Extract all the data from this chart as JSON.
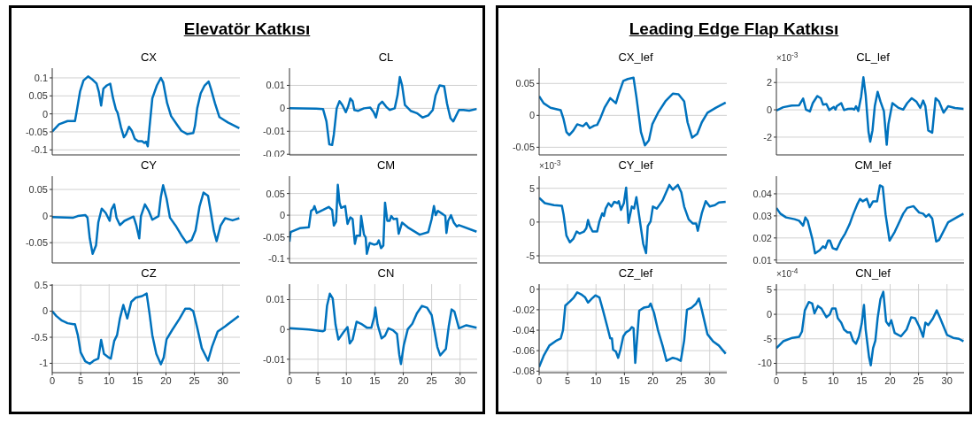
{
  "chart_data": [
    {
      "type": "line",
      "title": "CX",
      "annotations": [
        "Elevatör Katkısı"
      ],
      "x": [
        0,
        1.2,
        2.7,
        4,
        4.4,
        4.9,
        5.5,
        6.3,
        7.1,
        7.8,
        8.2,
        8.6,
        9,
        9.6,
        10.2,
        10.7,
        11.2,
        11.5,
        12.1,
        12.6,
        13,
        13.5,
        14,
        14.5,
        15.1,
        15.8,
        16.2,
        16.5,
        16.8,
        17.1,
        17.6,
        18.4,
        19.1,
        19.5,
        20.2,
        20.9,
        21.9,
        22.7,
        23.7,
        24.8,
        25.1,
        25.5,
        26.1,
        26.8,
        27.5,
        27.9,
        28.6,
        29.4,
        30.9,
        32.9
      ],
      "series": [
        {
          "color": "#0072bd",
          "values": [
            -0.049,
            -0.029,
            -0.02,
            -0.02,
            0.016,
            0.063,
            0.093,
            0.104,
            0.095,
            0.084,
            0.061,
            0.023,
            0.07,
            0.079,
            0.084,
            0.043,
            0.012,
            0.003,
            -0.038,
            -0.065,
            -0.056,
            -0.036,
            -0.047,
            -0.069,
            -0.076,
            -0.076,
            -0.081,
            -0.077,
            -0.09,
            -0.038,
            0.043,
            0.079,
            0.1,
            0.088,
            0.03,
            -0.006,
            -0.029,
            -0.047,
            -0.056,
            -0.053,
            -0.033,
            0.016,
            0.057,
            0.079,
            0.09,
            0.07,
            0.03,
            -0.009,
            -0.024,
            -0.04
          ]
        }
      ],
      "xlim": [
        0,
        33
      ],
      "xticks": [
        0,
        5,
        10,
        15,
        20,
        25,
        30
      ],
      "ylim": [
        -0.114,
        0.127
      ],
      "yticks": [
        -0.1,
        -0.05,
        0,
        0.05,
        0.1
      ],
      "grid": true,
      "tick_labels": "y"
    },
    {
      "type": "line",
      "title": "CL",
      "x": [
        0,
        4.7,
        5.9,
        6.5,
        7,
        7.5,
        7.8,
        8.3,
        8.8,
        9.3,
        9.9,
        10.3,
        10.7,
        11.1,
        11.4,
        12.1,
        13.1,
        14.2,
        14.8,
        15.2,
        15.7,
        16.3,
        17,
        17.6,
        18.5,
        19,
        19.4,
        19.8,
        20.3,
        21.3,
        22.4,
        23.4,
        24.4,
        25.2,
        25.7,
        26.4,
        27.2,
        27.7,
        28.3,
        28.8,
        29.8,
        30.6,
        31.6,
        32.9
      ],
      "series": [
        {
          "color": "#0072bd",
          "values": [
            0,
            -0.0001,
            -0.0003,
            -0.0057,
            -0.0157,
            -0.016,
            -0.0114,
            0,
            0.0031,
            0.0014,
            -0.0017,
            0.0007,
            0.0043,
            0.0031,
            -0.0007,
            -0.0011,
            0,
            0.0003,
            -0.0017,
            -0.004,
            0.0014,
            0.0029,
            0.0007,
            -0.0007,
            0,
            0.0057,
            0.0136,
            0.01,
            0.0014,
            -0.0011,
            -0.0021,
            -0.004,
            -0.0031,
            -0.0007,
            0.0057,
            0.01,
            0.0096,
            0.0021,
            -0.0043,
            -0.0057,
            -0.0007,
            -0.0007,
            -0.001,
            -0.0003
          ]
        }
      ],
      "xlim": [
        0,
        33
      ],
      "xticks": [
        0,
        5,
        10,
        15,
        20,
        25,
        30
      ],
      "ylim": [
        -0.0203,
        0.0175
      ],
      "yticks": [
        -0.02,
        -0.01,
        0,
        0.01
      ],
      "grid": true,
      "tick_labels": "y"
    },
    {
      "type": "line",
      "title": "CY",
      "x": [
        0,
        3.7,
        4.5,
        5.8,
        6.2,
        6.6,
        7.1,
        7.7,
        8.1,
        8.7,
        9.4,
        10.1,
        10.4,
        10.9,
        11.3,
        11.9,
        12.7,
        14.3,
        14.8,
        15.3,
        15.6,
        16.3,
        17,
        17.6,
        18.7,
        19.1,
        19.5,
        20.1,
        20.7,
        21.7,
        22.7,
        23.6,
        24.5,
        25.2,
        25.9,
        26.6,
        27.4,
        27.9,
        28.4,
        28.9,
        29.6,
        30.4,
        31.7,
        32.9
      ],
      "series": [
        {
          "color": "#0072bd",
          "values": [
            -0.002,
            -0.003,
            0,
            0.002,
            -0.003,
            -0.042,
            -0.071,
            -0.055,
            -0.012,
            0.014,
            0.006,
            -0.009,
            0.012,
            0.022,
            -0.003,
            -0.017,
            -0.009,
            -0.001,
            -0.018,
            -0.042,
            0,
            0.022,
            0.009,
            -0.007,
            0,
            0.036,
            0.058,
            0.033,
            -0.003,
            -0.018,
            -0.036,
            -0.05,
            -0.045,
            -0.027,
            0.018,
            0.044,
            0.038,
            0.006,
            -0.027,
            -0.047,
            -0.018,
            -0.004,
            -0.008,
            -0.004
          ]
        }
      ],
      "xlim": [
        0,
        33
      ],
      "xticks": [
        0,
        5,
        10,
        15,
        20,
        25,
        30
      ],
      "ylim": [
        -0.088,
        0.075
      ],
      "yticks": [
        -0.05,
        0,
        0.05
      ],
      "grid": true,
      "tick_labels": "y"
    },
    {
      "type": "line",
      "title": "CM",
      "x": [
        0,
        0.2,
        1.8,
        3.4,
        3.8,
        4.2,
        4.4,
        4.8,
        5.9,
        6.9,
        7.5,
        7.8,
        8.2,
        8.5,
        8.8,
        9.1,
        9.8,
        10.2,
        10.7,
        11.1,
        11.5,
        11.8,
        12.4,
        12.6,
        13.1,
        13.4,
        13.6,
        14.1,
        14.9,
        15.4,
        15.7,
        16.1,
        16.5,
        16.8,
        17.2,
        17.6,
        17.9,
        18.3,
        18.9,
        19.2,
        19.8,
        20.8,
        22.9,
        24.4,
        25,
        25.4,
        25.7,
        26.1,
        27,
        27.4,
        27.6,
        27.9,
        28.4,
        28.9,
        29.4,
        29.8,
        32.9
      ],
      "series": [
        {
          "color": "#0072bd",
          "values": [
            -0.061,
            -0.039,
            -0.03,
            -0.028,
            0.01,
            0.014,
            0.021,
            0.005,
            0.012,
            0.019,
            0.012,
            -0.024,
            -0.015,
            0.07,
            0.029,
            0.017,
            0.021,
            -0.02,
            -0.005,
            -0.009,
            -0.066,
            -0.047,
            -0.047,
            -0.002,
            -0.045,
            -0.051,
            -0.089,
            -0.064,
            -0.068,
            -0.066,
            -0.058,
            -0.076,
            -0.07,
            0.029,
            -0.013,
            -0.013,
            -0.002,
            -0.009,
            -0.008,
            -0.043,
            -0.017,
            -0.028,
            -0.045,
            -0.039,
            -0.009,
            0.021,
            0,
            0.01,
            0.002,
            -0.002,
            -0.041,
            -0.013,
            0,
            -0.017,
            -0.026,
            -0.023,
            -0.038
          ]
        }
      ],
      "xlim": [
        0,
        33
      ],
      "xticks": [
        0,
        5,
        10,
        15,
        20,
        25,
        30
      ],
      "ylim": [
        -0.11,
        0.09
      ],
      "yticks": [
        -0.1,
        -0.05,
        0,
        0.05
      ],
      "grid": true,
      "tick_labels": "y"
    },
    {
      "type": "line",
      "title": "CZ",
      "x": [
        0,
        0.7,
        1.7,
        2.7,
        3.7,
        4,
        4.5,
        5,
        5.8,
        6.6,
        7.3,
        8.1,
        8.6,
        9.1,
        9.8,
        10.3,
        10.9,
        11.4,
        11.9,
        12.5,
        13.2,
        13.9,
        14.7,
        15.8,
        16.6,
        17.1,
        17.6,
        18.3,
        19.1,
        19.6,
        20.1,
        21.1,
        22.4,
        23.4,
        24.2,
        24.8,
        25.5,
        26.3,
        27.4,
        28.1,
        29.1,
        30.4,
        32.8
      ],
      "series": [
        {
          "color": "#0072bd",
          "values": [
            0,
            -0.09,
            -0.18,
            -0.23,
            -0.25,
            -0.25,
            -0.46,
            -0.79,
            -0.96,
            -1.01,
            -0.95,
            -0.91,
            -0.55,
            -0.82,
            -0.88,
            -0.91,
            -0.57,
            -0.46,
            -0.14,
            0.12,
            -0.14,
            0.18,
            0.26,
            0.29,
            0.34,
            -0.04,
            -0.46,
            -0.82,
            -1.02,
            -0.89,
            -0.54,
            -0.36,
            -0.14,
            0.05,
            0.05,
            0,
            -0.32,
            -0.71,
            -0.95,
            -0.68,
            -0.39,
            -0.29,
            -0.09
          ]
        }
      ],
      "xlim": [
        0,
        33
      ],
      "xticks": [
        0,
        5,
        10,
        15,
        20,
        25,
        30
      ],
      "ylim": [
        -1.18,
        0.52
      ],
      "yticks": [
        -1,
        -0.5,
        0,
        0.5
      ],
      "grid": true
    },
    {
      "type": "line",
      "title": "CN",
      "x": [
        0,
        3.4,
        5.9,
        6.2,
        6.6,
        7.1,
        7.6,
        8.1,
        8.6,
        9.5,
        10.2,
        10.6,
        11.1,
        11.8,
        12.6,
        13.6,
        14.4,
        14.9,
        15.1,
        15.5,
        16.2,
        16.8,
        17.4,
        18.2,
        18.9,
        19.3,
        19.6,
        20.1,
        20.8,
        21.6,
        22.4,
        23.3,
        24.2,
        25,
        26,
        26.5,
        27.5,
        28,
        28.5,
        29,
        29.8,
        31.1,
        32.9
      ],
      "series": [
        {
          "color": "#0072bd",
          "values": [
            0.0004,
            0,
            -0.0006,
            -0.0003,
            0.0079,
            0.012,
            0.0104,
            0.0016,
            -0.0034,
            -0.0009,
            0.0008,
            -0.0047,
            -0.0034,
            0.0026,
            0.0019,
            0.0006,
            0.0006,
            0.0042,
            0.0073,
            0.0016,
            -0.003,
            -0.0021,
            0.0004,
            -0.0003,
            -0.0015,
            -0.0084,
            -0.0116,
            -0.0053,
            0.0001,
            0.0019,
            0.0054,
            0.0079,
            0.0073,
            0.0048,
            -0.0059,
            -0.0087,
            -0.0065,
            0.001,
            0.0067,
            0.006,
            0.0004,
            0.0014,
            0.0006
          ]
        }
      ],
      "xlim": [
        0,
        33
      ],
      "xticks": [
        0,
        5,
        10,
        15,
        20,
        25,
        30
      ],
      "ylim": [
        -0.0145,
        0.0152
      ],
      "yticks": [
        -0.01,
        0,
        0.01
      ],
      "grid": true
    },
    {
      "type": "line",
      "title": "CX_lef",
      "annotations": [
        "Leading Edge Flap Katkısı"
      ],
      "x": [
        0,
        0.8,
        2,
        3.8,
        4.3,
        4.8,
        5.3,
        6,
        6.7,
        7.7,
        8.3,
        8.9,
        9.7,
        10.2,
        10.7,
        11.5,
        12.5,
        13.5,
        14,
        14.8,
        15.6,
        16.6,
        17.1,
        17.9,
        18.6,
        19.3,
        19.9,
        20.9,
        22.2,
        23.5,
        24.5,
        25.5,
        26.1,
        26.9,
        27.8,
        28.6,
        29.6,
        31.1,
        32.8
      ],
      "series": [
        {
          "color": "#0072bd",
          "values": [
            0.03,
            0.019,
            0.012,
            0.008,
            -0.006,
            -0.026,
            -0.031,
            -0.024,
            -0.014,
            -0.017,
            -0.012,
            -0.02,
            -0.016,
            -0.015,
            -0.006,
            0.012,
            0.027,
            0.019,
            0.034,
            0.054,
            0.057,
            0.059,
            0.029,
            -0.026,
            -0.047,
            -0.039,
            -0.014,
            0.004,
            0.022,
            0.034,
            0.033,
            0.022,
            -0.011,
            -0.035,
            -0.029,
            -0.011,
            0.004,
            0.012,
            0.02
          ]
        }
      ],
      "xlim": [
        0,
        33
      ],
      "xticks": [
        0,
        5,
        10,
        15,
        20,
        25,
        30
      ],
      "ylim": [
        -0.062,
        0.074
      ],
      "yticks": [
        -0.05,
        0,
        0.05
      ],
      "grid": true,
      "tick_labels": "y"
    },
    {
      "type": "line",
      "title": "CL_lef",
      "annotations": [
        "×10$^{-3}$"
      ],
      "x": [
        0,
        1.2,
        2.7,
        4,
        4.7,
        5.2,
        5.9,
        6.4,
        7.2,
        7.8,
        8.2,
        8.8,
        9.3,
        10.1,
        10.4,
        10.6,
        11.4,
        11.9,
        12.6,
        13.3,
        13.7,
        14,
        14.4,
        14.9,
        15.3,
        15.7,
        16.2,
        16.5,
        16.9,
        17.3,
        17.8,
        18.3,
        18.9,
        19.4,
        19.7,
        20.4,
        21.5,
        22.3,
        23,
        23.8,
        24.6,
        25.3,
        25.8,
        26.2,
        26.7,
        27.4,
        28,
        28.6,
        29.4,
        30.2,
        31.4,
        32.9
      ],
      "series": [
        {
          "color": "#0072bd",
          "values": [
            -0.05,
            0.19,
            0.31,
            0.33,
            0.82,
            0.02,
            -0.12,
            0.49,
            1.01,
            0.85,
            0.38,
            0.42,
            -0.02,
            0.21,
            0.02,
            0.26,
            0.49,
            -0.02,
            0.07,
            0.09,
            0.02,
            0.26,
            -0.09,
            0.96,
            2.38,
            1.08,
            -1.62,
            -2.33,
            -1.51,
            0.26,
            1.32,
            0.61,
            -0.09,
            -2.56,
            -1.04,
            0.49,
            0.14,
            0.02,
            0.49,
            0.85,
            0.61,
            0.14,
            0.68,
            0.26,
            -1.51,
            -1.67,
            0.85,
            0.61,
            -0.21,
            0.26,
            0.14,
            0.07
          ]
        }
      ],
      "xlim": [
        0,
        33
      ],
      "xticks": [
        0,
        5,
        10,
        15,
        20,
        25,
        30
      ],
      "ylim": [
        -3.3,
        3.05
      ],
      "yticks": [
        -2,
        0,
        2
      ],
      "grid": true,
      "tick_labels": "y"
    },
    {
      "type": "line",
      "title": "CY_lef",
      "annotations": [
        "×10$^{-3}$"
      ],
      "x": [
        0,
        1,
        2.6,
        4,
        4.3,
        4.8,
        5.4,
        6,
        6.6,
        7.1,
        7.9,
        8.3,
        8.6,
        8.9,
        9.4,
        10.2,
        10.6,
        11.1,
        11.4,
        11.7,
        12.2,
        12.7,
        13.2,
        13.8,
        14,
        14.4,
        14.9,
        15.3,
        15.7,
        16.3,
        16.7,
        17.1,
        17.4,
        18.3,
        18.8,
        19.1,
        19.6,
        20,
        20.7,
        21.7,
        22.9,
        23.5,
        24.4,
        25,
        25.5,
        26.3,
        27,
        27.6,
        27.9,
        28.6,
        29.3,
        30,
        30.9,
        31.6,
        32.8
      ],
      "series": [
        {
          "color": "#0072bd",
          "values": [
            3.6,
            2.8,
            2.5,
            2.4,
            1.1,
            -2,
            -3,
            -2.5,
            -1.4,
            -1.7,
            -1.4,
            -0.9,
            0.3,
            -0.6,
            -1.4,
            -1.4,
            0.1,
            1.3,
            0.9,
            2,
            2.8,
            2.3,
            3,
            2.8,
            3.1,
            1.8,
            2.8,
            5.1,
            -0.1,
            2.3,
            2,
            3.7,
            2,
            -3.2,
            -4.6,
            -0.6,
            0.1,
            2.3,
            2,
            3.2,
            5.5,
            4.8,
            5.5,
            4.4,
            2.3,
            0.4,
            -0.2,
            -0.2,
            -1.3,
            1.3,
            3.1,
            2.3,
            2.5,
            2.9,
            3
          ]
        }
      ],
      "xlim": [
        0,
        33
      ],
      "xticks": [
        0,
        5,
        10,
        15,
        20,
        25,
        30
      ],
      "ylim": [
        -6.05,
        6.8
      ],
      "yticks": [
        -5,
        0,
        5
      ],
      "grid": true,
      "tick_labels": "y"
    },
    {
      "type": "line",
      "title": "CM_lef",
      "x": [
        0,
        0.7,
        1.7,
        3.2,
        4,
        4.7,
        5.1,
        5.5,
        6.3,
        6.8,
        7.6,
        8.2,
        8.6,
        9.1,
        9.4,
        9.9,
        10.6,
        11.4,
        12.1,
        12.9,
        13.5,
        14.2,
        14.7,
        15.2,
        15.9,
        16.4,
        17,
        17.7,
        18.2,
        18.7,
        19.2,
        19.9,
        20.8,
        22.3,
        23,
        24.1,
        25.1,
        25.8,
        26.3,
        26.8,
        27.4,
        28.1,
        28.6,
        30.2,
        31.7,
        32.9
      ],
      "series": [
        {
          "color": "#0072bd",
          "values": [
            0.0336,
            0.031,
            0.0293,
            0.0285,
            0.0278,
            0.0256,
            0.0293,
            0.0278,
            0.0198,
            0.013,
            0.0144,
            0.0162,
            0.0154,
            0.0188,
            0.0188,
            0.0154,
            0.0147,
            0.0191,
            0.022,
            0.0264,
            0.0307,
            0.0351,
            0.0377,
            0.0366,
            0.0377,
            0.0339,
            0.0366,
            0.0366,
            0.0438,
            0.0431,
            0.0307,
            0.0188,
            0.0227,
            0.031,
            0.0336,
            0.0344,
            0.0315,
            0.031,
            0.0296,
            0.0307,
            0.0288,
            0.0184,
            0.0191,
            0.0271,
            0.0293,
            0.031
          ]
        }
      ],
      "xlim": [
        0,
        33
      ],
      "xticks": [
        0,
        5,
        10,
        15,
        20,
        25,
        30
      ],
      "ylim": [
        0.0087,
        0.048
      ],
      "yticks": [
        0.01,
        0.02,
        0.03,
        0.04
      ],
      "grid": true,
      "tick_labels": "y"
    },
    {
      "type": "line",
      "title": "CZ_lef",
      "x": [
        0,
        0.8,
        1.8,
        3.1,
        3.8,
        4.2,
        4.6,
        5.4,
        6.1,
        6.7,
        7.4,
        8.1,
        8.6,
        9.3,
        9.9,
        10.6,
        11.2,
        12,
        12.5,
        12.8,
        13,
        13.5,
        13.9,
        14.3,
        14.8,
        15.3,
        15.9,
        16.3,
        16.6,
        16.9,
        17.6,
        18.4,
        19.3,
        19.6,
        20.2,
        20.9,
        21.7,
        22.4,
        23.5,
        24.2,
        24.9,
        25.5,
        26,
        26.8,
        27.6,
        28.1,
        28.6,
        29.6,
        30.6,
        31.6,
        32.8
      ],
      "series": [
        {
          "color": "#0072bd",
          "values": [
            -0.076,
            -0.065,
            -0.055,
            -0.05,
            -0.048,
            -0.04,
            -0.016,
            -0.012,
            -0.008,
            -0.003,
            -0.005,
            -0.008,
            -0.013,
            -0.009,
            -0.006,
            -0.008,
            -0.02,
            -0.037,
            -0.048,
            -0.048,
            -0.059,
            -0.061,
            -0.067,
            -0.059,
            -0.046,
            -0.042,
            -0.04,
            -0.037,
            -0.038,
            -0.072,
            -0.021,
            -0.018,
            -0.017,
            -0.014,
            -0.023,
            -0.04,
            -0.055,
            -0.07,
            -0.067,
            -0.068,
            -0.07,
            -0.05,
            -0.02,
            -0.018,
            -0.014,
            -0.009,
            -0.02,
            -0.044,
            -0.051,
            -0.055,
            -0.063
          ]
        }
      ],
      "xlim": [
        0,
        33
      ],
      "xticks": [
        0,
        5,
        10,
        15,
        20,
        25,
        30
      ],
      "ylim": [
        -0.0815,
        0.005
      ],
      "yticks": [
        -0.08,
        -0.06,
        -0.04,
        -0.02,
        0
      ],
      "grid": true
    },
    {
      "type": "line",
      "title": "CN_lef",
      "annotations": [
        "×10$^{-4}$"
      ],
      "x": [
        0,
        1.2,
        2.8,
        4,
        4.5,
        5,
        5.7,
        6.3,
        6.7,
        7.3,
        7.9,
        8.3,
        8.8,
        9.4,
        9.8,
        10.4,
        10.8,
        11.4,
        11.9,
        12.5,
        13,
        13.5,
        14,
        14.5,
        15,
        15.4,
        15.7,
        16.3,
        16.6,
        17,
        17.4,
        17.8,
        18.3,
        18.8,
        19.3,
        19.8,
        20.2,
        20.8,
        21.9,
        22.9,
        23.7,
        24.4,
        25.2,
        25.8,
        26.2,
        26.7,
        27.5,
        28.2,
        28.8,
        30,
        31.1,
        32.1,
        32.9
      ],
      "series": [
        {
          "color": "#0072bd",
          "values": [
            -6.9,
            -5.5,
            -4.8,
            -4.6,
            -3.5,
            0.8,
            2.5,
            2.2,
            0.2,
            1.7,
            1.2,
            0.4,
            -0.6,
            0,
            1.2,
            1.2,
            -0.8,
            -1.7,
            -3.1,
            -3.7,
            -3.7,
            -5.4,
            -6,
            -4.6,
            -1.9,
            1.9,
            -3.1,
            -8.8,
            -10.4,
            -6.9,
            -5.4,
            -0.8,
            3.1,
            4.6,
            -1.5,
            -2.3,
            -1.2,
            -3.8,
            -4.5,
            -3.1,
            -0.6,
            -0.8,
            -2.7,
            -4.6,
            -1.7,
            -2.2,
            -0.9,
            0.8,
            -0.8,
            -4.2,
            -4.8,
            -5,
            -5.5
          ]
        }
      ],
      "xlim": [
        0,
        33
      ],
      "xticks": [
        0,
        5,
        10,
        15,
        20,
        25,
        30
      ],
      "ylim": [
        -11.9,
        6.15
      ],
      "yticks": [
        -10,
        -5,
        0,
        5
      ],
      "grid": true
    }
  ]
}
